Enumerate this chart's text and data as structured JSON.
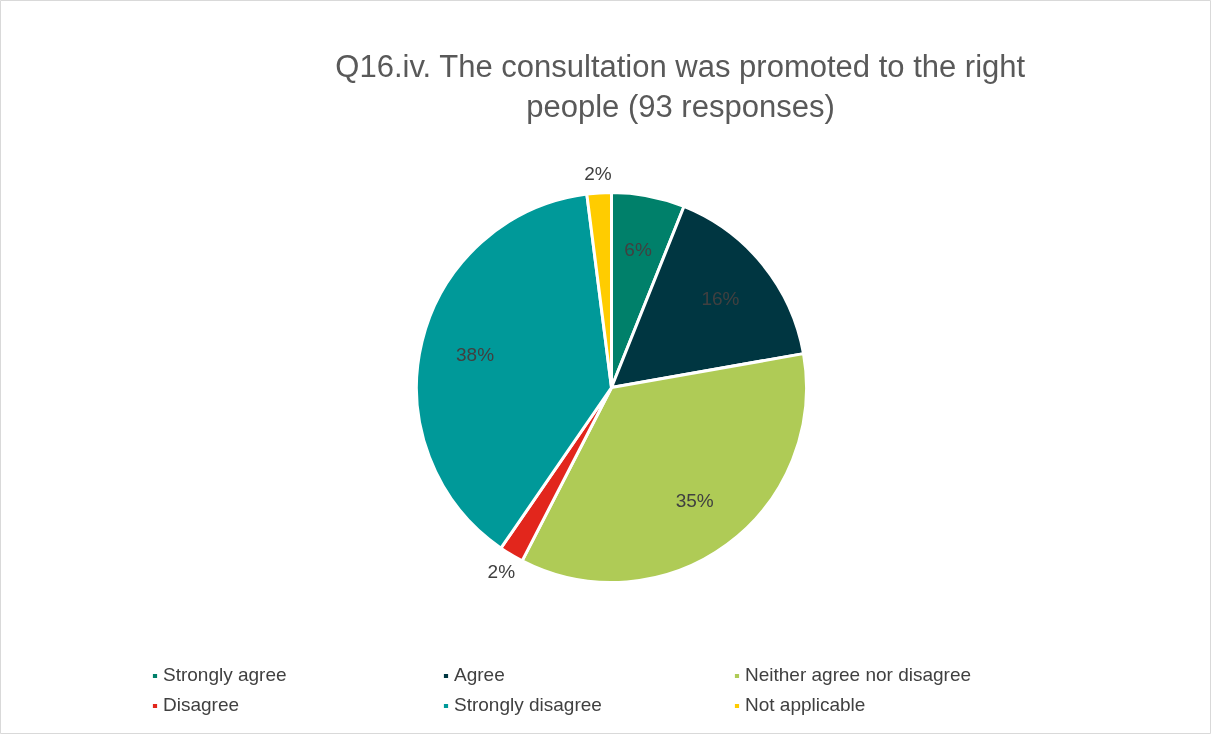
{
  "chart_data": {
    "type": "pie",
    "title": "Q16.iv. The consultation was promoted to the right\npeople (93 responses)",
    "categories": [
      "Strongly agree",
      "Agree",
      "Neither agree nor disagree",
      "Disagree",
      "Strongly disagree",
      "Not applicable"
    ],
    "values": [
      6,
      16,
      35,
      2,
      38,
      2
    ],
    "colors": [
      "#00806a",
      "#003641",
      "#afcb56",
      "#e2261c",
      "#009999",
      "#ffcc00"
    ],
    "value_labels": [
      "6%",
      "16%",
      "35%",
      "2%",
      "38%",
      "2%"
    ],
    "legend": "bottom"
  }
}
